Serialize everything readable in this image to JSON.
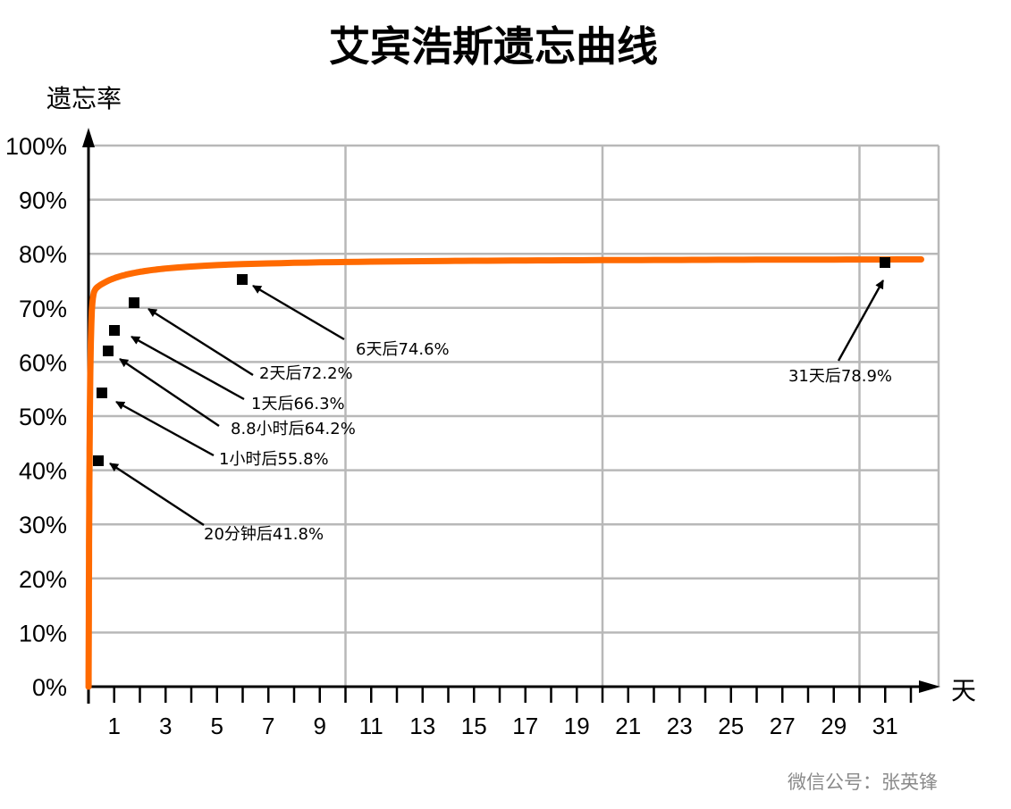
{
  "chart_data": {
    "type": "line",
    "title": "艾宾浩斯遗忘曲线",
    "ylabel": "遗忘率",
    "xlabel": "天",
    "xlim": [
      0,
      33
    ],
    "ylim": [
      0,
      100
    ],
    "y_ticks": [
      "0%",
      "10%",
      "20%",
      "30%",
      "40%",
      "50%",
      "60%",
      "70%",
      "80%",
      "90%",
      "100%"
    ],
    "x_ticks": [
      1,
      3,
      5,
      7,
      9,
      11,
      13,
      15,
      17,
      19,
      21,
      23,
      25,
      27,
      29,
      31
    ],
    "grid": true,
    "series": [
      {
        "color": "#ff6a00",
        "points": [
          {
            "x": 0.014,
            "y": 41.8,
            "label": "20分钟后41.8%"
          },
          {
            "x": 0.042,
            "y": 55.8,
            "label": "1小时后55.8%"
          },
          {
            "x": 0.367,
            "y": 64.2,
            "label": "8.8小时后64.2%"
          },
          {
            "x": 1,
            "y": 66.3,
            "label": "1天后66.3%"
          },
          {
            "x": 2,
            "y": 72.2,
            "label": "2天后72.2%"
          },
          {
            "x": 6,
            "y": 74.6,
            "label": "6天后74.6%"
          },
          {
            "x": 31,
            "y": 78.9,
            "label": "31天后78.9%"
          }
        ]
      }
    ]
  },
  "footer": "微信公号：张英锋"
}
